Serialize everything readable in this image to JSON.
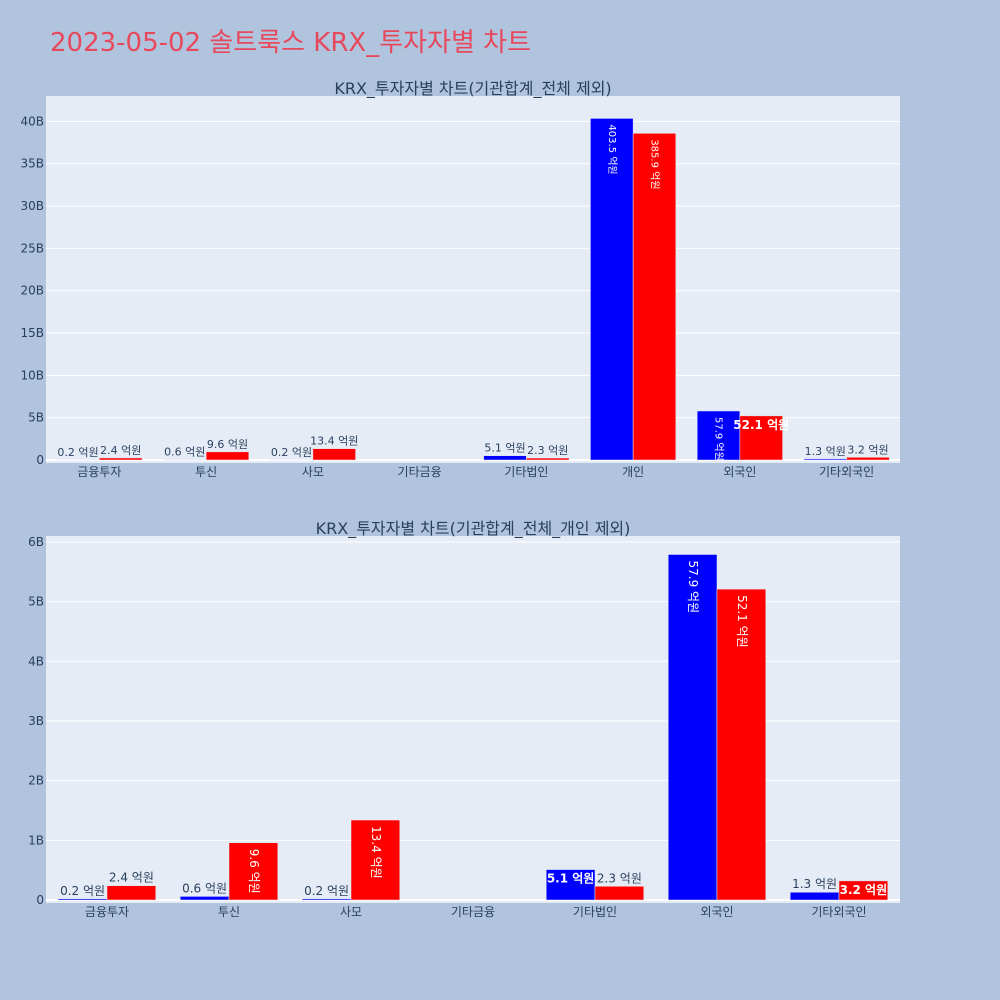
{
  "page": {
    "title": "2023-05-02 솔트룩스 KRX_투자자별 차트",
    "title_color": "#e8485c",
    "background": "#b0c4de",
    "plot_background": "#e5ecf6"
  },
  "chart_data": [
    {
      "type": "bar",
      "title": "KRX_투자자별 차트(기관합계_전체 제외)",
      "categories": [
        "금융투자",
        "투신",
        "사모",
        "기타금융",
        "기타법인",
        "개인",
        "외국인",
        "기타외국인"
      ],
      "series": [
        {
          "color": "#0000ff",
          "values": [
            20000000.0,
            60000000.0,
            20000000.0,
            0,
            510000000.0,
            40350000000.0,
            5790000000.0,
            130000000.0
          ],
          "labels": [
            "0.2 억원",
            "0.6 억원",
            "0.2 억원",
            "",
            "5.1 억원",
            "403.5 억원",
            "57.9 억원",
            "1.3 억원"
          ]
        },
        {
          "color": "#ff0000",
          "values": [
            240000000.0,
            960000000.0,
            1340000000.0,
            0,
            230000000.0,
            38590000000.0,
            5210000000.0,
            320000000.0
          ],
          "labels": [
            "2.4 억원",
            "9.6 억원",
            "13.4 억원",
            "",
            "2.3 억원",
            "385.9 억원",
            "52.1 억원",
            "3.2 억원"
          ]
        }
      ],
      "ylim": [
        0,
        43000000000.0
      ],
      "yticks": [
        0,
        5000000000.0,
        10000000000.0,
        15000000000.0,
        20000000000.0,
        25000000000.0,
        30000000000.0,
        35000000000.0,
        40000000000.0
      ],
      "ytick_labels": [
        "0",
        "5B",
        "10B",
        "15B",
        "20B",
        "25B",
        "30B",
        "35B",
        "40B"
      ],
      "grid": true,
      "legend": false
    },
    {
      "type": "bar",
      "title": "KRX_투자자별 차트(기관합계_전체_개인 제외)",
      "categories": [
        "금융투자",
        "투신",
        "사모",
        "기타금융",
        "기타법인",
        "외국인",
        "기타외국인"
      ],
      "series": [
        {
          "color": "#0000ff",
          "values": [
            20000000.0,
            60000000.0,
            20000000.0,
            0,
            510000000.0,
            5790000000.0,
            130000000.0
          ],
          "labels": [
            "0.2 억원",
            "0.6 억원",
            "0.2 억원",
            "",
            "5.1 억원",
            "57.9 억원",
            "1.3 억원"
          ]
        },
        {
          "color": "#ff0000",
          "values": [
            240000000.0,
            960000000.0,
            1340000000.0,
            0,
            230000000.0,
            5210000000.0,
            320000000.0
          ],
          "labels": [
            "2.4 억원",
            "9.6 억원",
            "13.4 억원",
            "",
            "2.3 억원",
            "52.1 억원",
            "3.2 억원"
          ]
        }
      ],
      "ylim": [
        0,
        6100000000.0
      ],
      "yticks": [
        0,
        1000000000.0,
        2000000000.0,
        3000000000.0,
        4000000000.0,
        5000000000.0,
        6000000000.0
      ],
      "ytick_labels": [
        "0",
        "1B",
        "2B",
        "3B",
        "4B",
        "5B",
        "6B"
      ],
      "grid": true,
      "legend": false
    }
  ]
}
